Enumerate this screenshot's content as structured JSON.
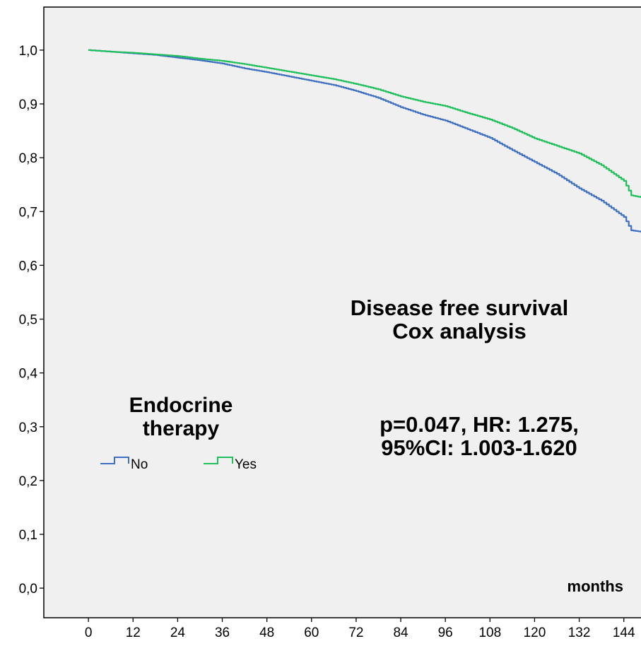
{
  "chart_data": {
    "type": "line",
    "title": "",
    "xlabel": "months",
    "ylabel": "",
    "xlim": [
      -12,
      149
    ],
    "ylim": [
      -0.055,
      1.08
    ],
    "x_ticks": [
      0,
      12,
      24,
      36,
      48,
      60,
      72,
      84,
      96,
      108,
      120,
      132,
      144
    ],
    "x_tick_labels": [
      "0",
      "12",
      "24",
      "36",
      "48",
      "60",
      "72",
      "84",
      "96",
      "108",
      "120",
      "132",
      "144"
    ],
    "y_ticks": [
      0.0,
      0.1,
      0.2,
      0.3,
      0.4,
      0.5,
      0.6,
      0.7,
      0.8,
      0.9,
      1.0
    ],
    "y_tick_labels": [
      "0,0",
      "0,1",
      "0,2",
      "0,3",
      "0,4",
      "0,5",
      "0,6",
      "0,7",
      "0,8",
      "0,9",
      "1,0"
    ],
    "grid": false,
    "legend": {
      "title_line1": "Endocrine",
      "title_line2": "therapy",
      "placement": "left-center"
    },
    "annotations": {
      "title_line1": "Disease free survival",
      "title_line2": "Cox analysis",
      "stats_line1": "p=0.047, HR: 1.275,",
      "stats_line2": "95%CI: 1.003-1.620"
    },
    "series": [
      {
        "name": "No",
        "color": "#3e6fc0",
        "x": [
          0,
          6,
          12,
          18,
          24,
          30,
          36,
          42,
          48,
          54,
          60,
          66,
          72,
          78,
          84,
          90,
          96,
          102,
          108,
          114,
          120,
          126,
          132,
          138,
          144,
          146,
          149
        ],
        "y": [
          1.0,
          0.997,
          0.994,
          0.991,
          0.986,
          0.981,
          0.975,
          0.966,
          0.959,
          0.951,
          0.943,
          0.935,
          0.924,
          0.911,
          0.894,
          0.88,
          0.869,
          0.853,
          0.837,
          0.814,
          0.792,
          0.77,
          0.743,
          0.72,
          0.69,
          0.665,
          0.662
        ]
      },
      {
        "name": "Yes",
        "color": "#1fbf5b",
        "x": [
          0,
          6,
          12,
          18,
          24,
          30,
          36,
          42,
          48,
          54,
          60,
          66,
          72,
          78,
          84,
          90,
          96,
          102,
          108,
          114,
          120,
          126,
          132,
          138,
          144,
          146,
          149
        ],
        "y": [
          1.0,
          0.997,
          0.995,
          0.992,
          0.989,
          0.984,
          0.98,
          0.974,
          0.967,
          0.96,
          0.953,
          0.946,
          0.937,
          0.927,
          0.914,
          0.904,
          0.896,
          0.883,
          0.871,
          0.855,
          0.836,
          0.822,
          0.808,
          0.786,
          0.757,
          0.73,
          0.726
        ]
      }
    ]
  }
}
